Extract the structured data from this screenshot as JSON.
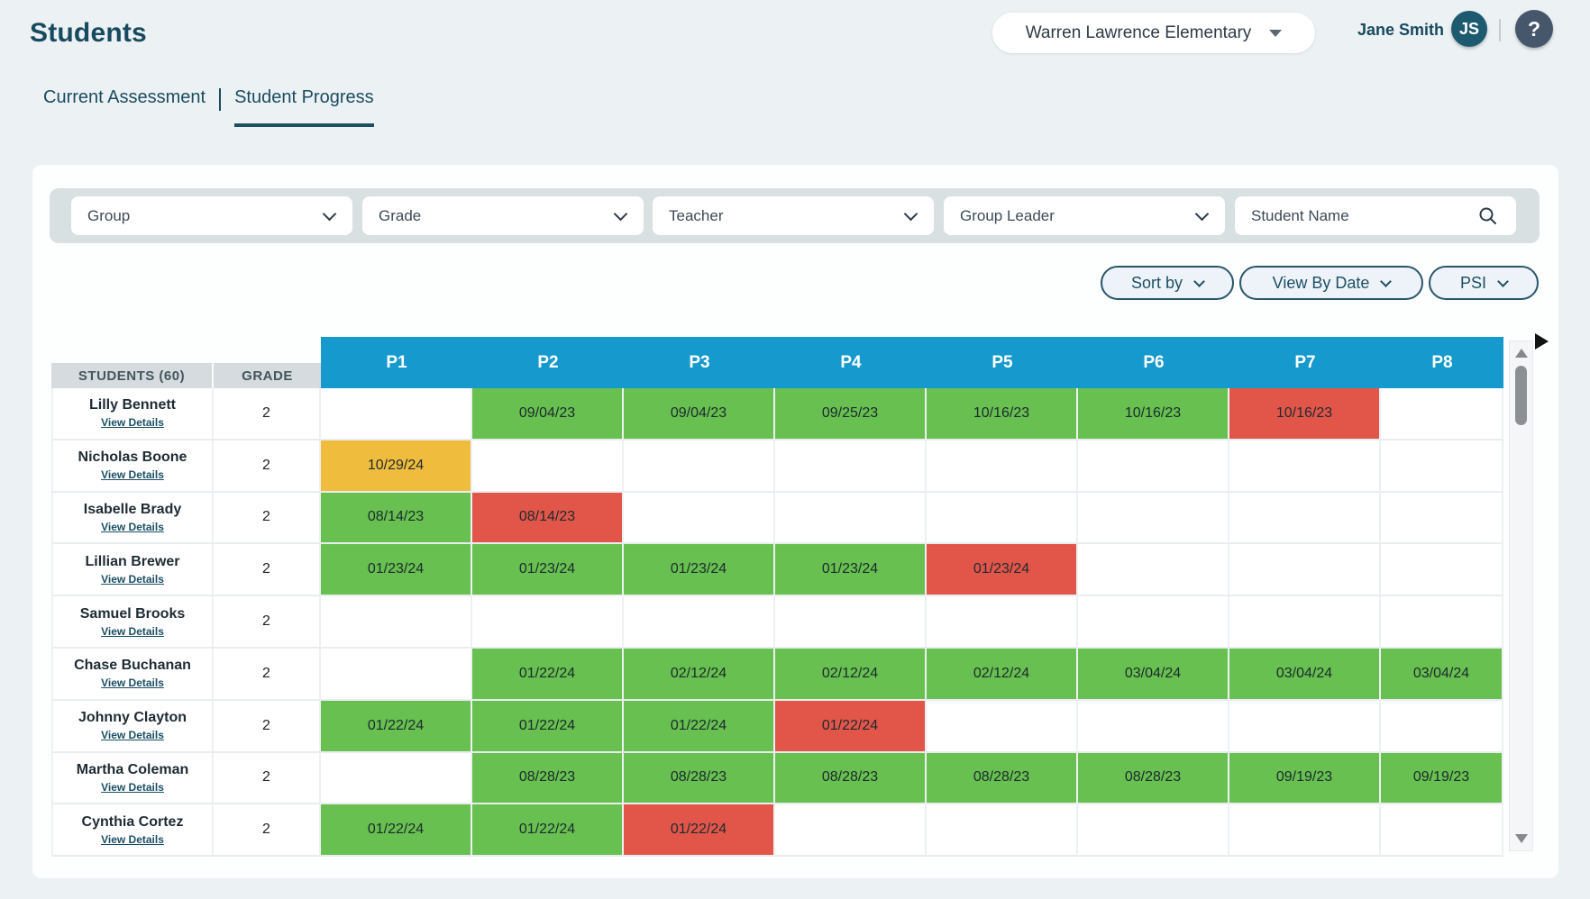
{
  "page": {
    "title": "Students",
    "school_selector": "Warren Lawrence Elementary",
    "user_name": "Jane Smith",
    "user_initials": "JS",
    "help_label": "?"
  },
  "tabs": [
    {
      "label": "Current Assessment",
      "active": false
    },
    {
      "label": "Student Progress",
      "active": true
    }
  ],
  "filters": {
    "dropdowns": [
      "Group",
      "Grade",
      "Teacher",
      "Group Leader"
    ],
    "search_placeholder": "Student Name"
  },
  "toolbar": {
    "buttons": [
      "Sort by",
      "View By Date",
      "PSI"
    ]
  },
  "table": {
    "students_header": "STUDENTS (60)",
    "grade_header": "GRADE",
    "period_headers": [
      "P1",
      "P2",
      "P3",
      "P4",
      "P5",
      "P6",
      "P7",
      "P8"
    ],
    "view_details_label": "View Details",
    "rows": [
      {
        "name": "Lilly Bennett",
        "grade": "2",
        "cells": [
          null,
          {
            "date": "09/04/23",
            "status": "green"
          },
          {
            "date": "09/04/23",
            "status": "green"
          },
          {
            "date": "09/25/23",
            "status": "green"
          },
          {
            "date": "10/16/23",
            "status": "green"
          },
          {
            "date": "10/16/23",
            "status": "green"
          },
          {
            "date": "10/16/23",
            "status": "red"
          },
          null
        ]
      },
      {
        "name": "Nicholas Boone",
        "grade": "2",
        "cells": [
          {
            "date": "10/29/24",
            "status": "yellow"
          },
          null,
          null,
          null,
          null,
          null,
          null,
          null
        ]
      },
      {
        "name": "Isabelle Brady",
        "grade": "2",
        "cells": [
          {
            "date": "08/14/23",
            "status": "green"
          },
          {
            "date": "08/14/23",
            "status": "red"
          },
          null,
          null,
          null,
          null,
          null,
          null
        ]
      },
      {
        "name": "Lillian Brewer",
        "grade": "2",
        "cells": [
          {
            "date": "01/23/24",
            "status": "green"
          },
          {
            "date": "01/23/24",
            "status": "green"
          },
          {
            "date": "01/23/24",
            "status": "green"
          },
          {
            "date": "01/23/24",
            "status": "green"
          },
          {
            "date": "01/23/24",
            "status": "red"
          },
          null,
          null,
          null
        ]
      },
      {
        "name": "Samuel Brooks",
        "grade": "2",
        "cells": [
          null,
          null,
          null,
          null,
          null,
          null,
          null,
          null
        ]
      },
      {
        "name": "Chase Buchanan",
        "grade": "2",
        "cells": [
          null,
          {
            "date": "01/22/24",
            "status": "green"
          },
          {
            "date": "02/12/24",
            "status": "green"
          },
          {
            "date": "02/12/24",
            "status": "green"
          },
          {
            "date": "02/12/24",
            "status": "green"
          },
          {
            "date": "03/04/24",
            "status": "green"
          },
          {
            "date": "03/04/24",
            "status": "green"
          },
          {
            "date": "03/04/24",
            "status": "green"
          }
        ]
      },
      {
        "name": "Johnny Clayton",
        "grade": "2",
        "cells": [
          {
            "date": "01/22/24",
            "status": "green"
          },
          {
            "date": "01/22/24",
            "status": "green"
          },
          {
            "date": "01/22/24",
            "status": "green"
          },
          {
            "date": "01/22/24",
            "status": "red"
          },
          null,
          null,
          null,
          null
        ]
      },
      {
        "name": "Martha Coleman",
        "grade": "2",
        "cells": [
          null,
          {
            "date": "08/28/23",
            "status": "green"
          },
          {
            "date": "08/28/23",
            "status": "green"
          },
          {
            "date": "08/28/23",
            "status": "green"
          },
          {
            "date": "08/28/23",
            "status": "green"
          },
          {
            "date": "08/28/23",
            "status": "green"
          },
          {
            "date": "09/19/23",
            "status": "green"
          },
          {
            "date": "09/19/23",
            "status": "green"
          }
        ]
      },
      {
        "name": "Cynthia Cortez",
        "grade": "2",
        "cells": [
          {
            "date": "01/22/24",
            "status": "green"
          },
          {
            "date": "01/22/24",
            "status": "green"
          },
          {
            "date": "01/22/24",
            "status": "red"
          },
          null,
          null,
          null,
          null,
          null
        ]
      }
    ]
  },
  "colors": {
    "green": "#67c04f",
    "red": "#e2564a",
    "yellow": "#efbc3d",
    "header_blue": "#1699cd"
  }
}
